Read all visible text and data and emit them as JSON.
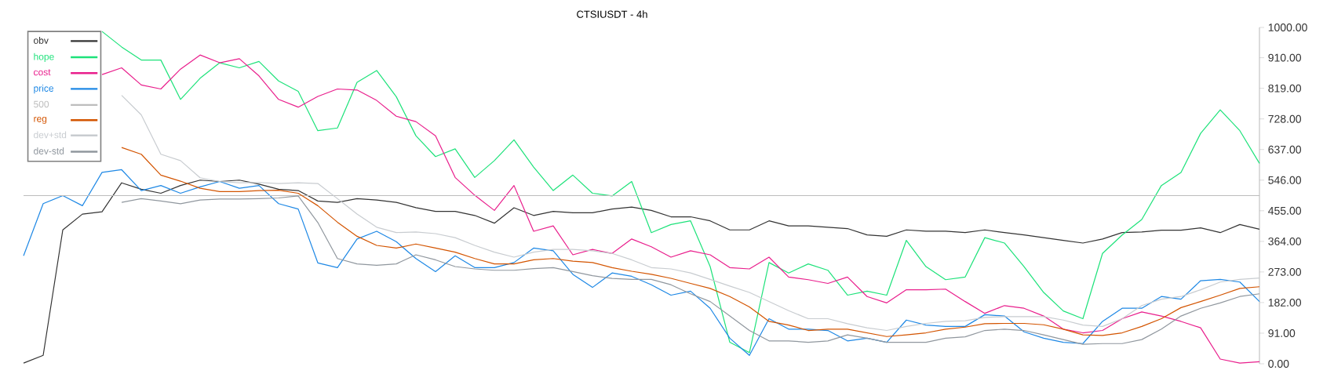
{
  "chart_data": {
    "type": "line",
    "title": "CTSIUSDT - 4h",
    "categories": [
      null,
      null,
      null,
      null,
      null,
      null,
      null,
      null,
      null,
      null,
      null,
      null,
      null,
      null,
      null,
      null,
      null,
      null,
      null,
      null,
      null,
      null,
      null,
      null,
      null,
      null,
      null,
      null,
      null,
      null,
      null,
      null,
      null,
      null,
      null,
      null,
      null,
      null,
      null,
      null,
      null,
      null,
      null,
      null,
      null,
      null,
      null,
      null,
      null,
      null,
      null,
      null,
      null,
      null,
      null,
      null,
      null,
      null,
      null,
      null,
      null,
      null,
      null,
      null
    ],
    "series": [
      {
        "name": "obv",
        "color": "#333333",
        "values": [
          2,
          25,
          398,
          445,
          452,
          538,
          519,
          507,
          530,
          546,
          542,
          546,
          534,
          519,
          515,
          484,
          480,
          491,
          487,
          480,
          464,
          453,
          453,
          441,
          418,
          464,
          441,
          453,
          449,
          449,
          460,
          466,
          456,
          437,
          437,
          425,
          398,
          398,
          425,
          410,
          410,
          406,
          402,
          383,
          379,
          398,
          394,
          394,
          390,
          398,
          390,
          383,
          375,
          367,
          359,
          371,
          390,
          392,
          397,
          397,
          404,
          390,
          414,
          400
        ]
      },
      {
        "name": "hope",
        "color": "#1de27a",
        "values": [
          null,
          null,
          null,
          null,
          988,
          942,
          903,
          903,
          786,
          849,
          895,
          880,
          899,
          841,
          810,
          693,
          701,
          837,
          872,
          794,
          678,
          616,
          639,
          554,
          604,
          666,
          585,
          515,
          561,
          507,
          499,
          542,
          390,
          414,
          425,
          289,
          64,
          33,
          301,
          270,
          297,
          278,
          204,
          216,
          204,
          367,
          289,
          250,
          258,
          375,
          359,
          289,
          212,
          157,
          134,
          328,
          383,
          429,
          530,
          569,
          685,
          755,
          693,
          596
        ]
      },
      {
        "name": "cost",
        "color": "#e91e8c",
        "values": [
          null,
          null,
          null,
          null,
          860,
          880,
          829,
          817,
          876,
          918,
          895,
          907,
          856,
          786,
          763,
          795,
          817,
          814,
          783,
          736,
          720,
          678,
          554,
          501,
          456,
          530,
          394,
          410,
          324,
          340,
          328,
          371,
          348,
          317,
          336,
          324,
          286,
          282,
          317,
          258,
          250,
          239,
          258,
          200,
          181,
          220,
          220,
          222,
          185,
          150,
          173,
          165,
          142,
          103,
          92,
          99,
          134,
          154,
          142,
          126,
          107,
          14,
          2,
          6
        ]
      },
      {
        "name": "price",
        "color": "#1e88e5",
        "values": [
          321,
          476,
          500,
          470,
          569,
          577,
          515,
          530,
          507,
          526,
          542,
          522,
          530,
          476,
          460,
          300,
          286,
          371,
          394,
          363,
          313,
          274,
          321,
          286,
          286,
          301,
          344,
          336,
          266,
          227,
          270,
          260,
          235,
          204,
          216,
          165,
          76,
          25,
          134,
          103,
          103,
          99,
          68,
          76,
          64,
          130,
          115,
          111,
          111,
          146,
          142,
          95,
          76,
          64,
          60,
          126,
          165,
          165,
          200,
          192,
          247,
          251,
          243,
          185
        ]
      },
      {
        "name": "500",
        "color": "#bdbdbd",
        "values": [
          500,
          500,
          500,
          500,
          500,
          500,
          500,
          500,
          500,
          500,
          500,
          500,
          500,
          500,
          500,
          500,
          500,
          500,
          500,
          500,
          500,
          500,
          500,
          500,
          500,
          500,
          500,
          500,
          500,
          500,
          500,
          500,
          500,
          500,
          500,
          500,
          500,
          500,
          500,
          500,
          500,
          500,
          500,
          500,
          500,
          500,
          500,
          500,
          500,
          500,
          500,
          500,
          500,
          500,
          500,
          500,
          500,
          500,
          500,
          500,
          500,
          500,
          500,
          500
        ]
      },
      {
        "name": "reg",
        "color": "#d35400",
        "values": [
          null,
          null,
          null,
          null,
          null,
          643,
          623,
          561,
          543,
          522,
          512,
          512,
          515,
          516,
          507,
          470,
          421,
          379,
          352,
          344,
          356,
          344,
          332,
          313,
          297,
          297,
          309,
          313,
          305,
          301,
          286,
          275,
          266,
          254,
          239,
          224,
          200,
          169,
          126,
          115,
          99,
          103,
          103,
          92,
          81,
          86,
          92,
          103,
          109,
          119,
          120,
          120,
          116,
          103,
          86,
          84,
          92,
          111,
          134,
          167,
          185,
          204,
          224,
          229
        ]
      },
      {
        "name": "dev+std",
        "color": "#c8ccd0",
        "values": [
          null,
          null,
          null,
          null,
          null,
          798,
          740,
          623,
          604,
          553,
          542,
          538,
          539,
          536,
          538,
          536,
          491,
          445,
          406,
          390,
          392,
          387,
          375,
          352,
          332,
          317,
          332,
          340,
          340,
          336,
          328,
          309,
          286,
          282,
          270,
          251,
          231,
          212,
          185,
          158,
          134,
          134,
          119,
          107,
          99,
          111,
          120,
          126,
          128,
          138,
          140,
          140,
          140,
          130,
          115,
          111,
          134,
          173,
          192,
          200,
          220,
          243,
          251,
          255
        ]
      },
      {
        "name": "dev-std",
        "color": "#90979e",
        "values": [
          null,
          null,
          null,
          null,
          null,
          480,
          491,
          484,
          476,
          487,
          490,
          490,
          491,
          493,
          499,
          420,
          313,
          297,
          293,
          297,
          324,
          309,
          289,
          282,
          278,
          278,
          283,
          286,
          274,
          262,
          254,
          251,
          251,
          235,
          208,
          185,
          142,
          99,
          68,
          68,
          64,
          68,
          86,
          76,
          64,
          64,
          64,
          76,
          80,
          99,
          103,
          99,
          86,
          72,
          58,
          60,
          60,
          72,
          103,
          142,
          165,
          181,
          200,
          208
        ]
      }
    ],
    "ylim": [
      0,
      1000
    ],
    "yticks": [
      {
        "value": 0,
        "label": "0.00"
      },
      {
        "value": 91,
        "label": "91.00"
      },
      {
        "value": 182,
        "label": "182.00"
      },
      {
        "value": 273,
        "label": "273.00"
      },
      {
        "value": 364,
        "label": "364.00"
      },
      {
        "value": 455,
        "label": "455.00"
      },
      {
        "value": 546,
        "label": "546.00"
      },
      {
        "value": 637,
        "label": "637.00"
      },
      {
        "value": 728,
        "label": "728.00"
      },
      {
        "value": 819,
        "label": "819.00"
      },
      {
        "value": 910,
        "label": "910.00"
      },
      {
        "value": 1000,
        "label": "1000.00"
      }
    ],
    "grid": false,
    "legend": "top left",
    "marker": "none",
    "line_style": "solid",
    "tick_labels": "y"
  }
}
